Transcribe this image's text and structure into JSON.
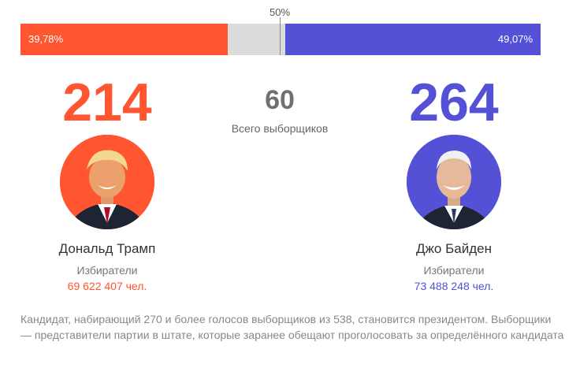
{
  "colors": {
    "trump": "#ff5530",
    "biden": "#5551d6",
    "undecided": "#dcdcdc"
  },
  "bar": {
    "midpoint_label": "50%",
    "left": {
      "label": "39,78%",
      "value": 39.78
    },
    "right": {
      "label": "49,07%",
      "value": 49.07
    }
  },
  "candidates": {
    "left": {
      "electors": "214",
      "name": "Дональд Трамп",
      "voters_label": "Избиратели",
      "voters_value": "69 622 407 чел.",
      "photo_icon": "portrait-icon"
    },
    "right": {
      "electors": "264",
      "name": "Джо Байден",
      "voters_label": "Избиратели",
      "voters_value": "73 488 248 чел.",
      "photo_icon": "portrait-icon"
    }
  },
  "center": {
    "electors": "60",
    "label": "Всего выборщиков"
  },
  "note": "Кандидат, набирающий 270 и более голосов выборщиков из 538, становится президентом. Выборщики — представители партии в штате, которые заранее обещают проголосовать за определённого кандидата"
}
